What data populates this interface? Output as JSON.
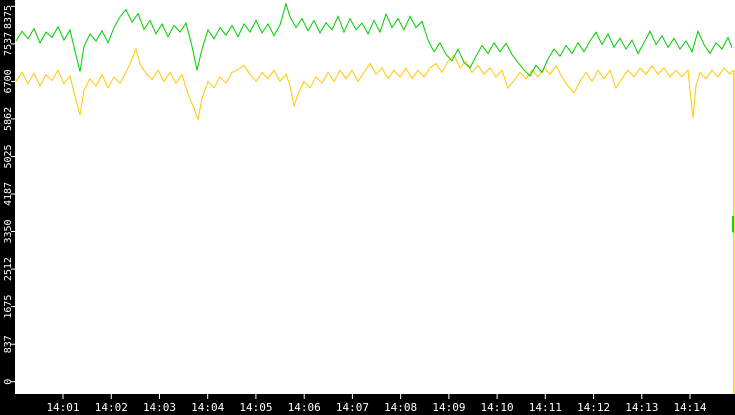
{
  "colors": {
    "background": "#ffffff",
    "axis_band": "#000000",
    "axis_text": "#ffffff",
    "tick_mark": "#ffffff",
    "series_green": "#00cc00",
    "series_yellow": "#ffc800"
  },
  "chart_data": {
    "type": "line",
    "title": "",
    "xlabel": "",
    "ylabel": "",
    "grid": false,
    "legend": "none",
    "x_axis": {
      "tick_labels": [
        "14:01",
        "14:02",
        "14:03",
        "14:04",
        "14:05",
        "14:06",
        "14:07",
        "14:08",
        "14:09",
        "14:10",
        "14:11",
        "14:12",
        "14:13",
        "14:14"
      ],
      "start_time": "14:00",
      "end_time": "14:14:55"
    },
    "y_axis": {
      "tick_labels": [
        "0",
        "837",
        "1675",
        "2512",
        "3350",
        "4187",
        "5025",
        "5862",
        "6700",
        "7537",
        "8375"
      ],
      "tick_values": [
        0,
        837,
        1675,
        2512,
        3350,
        4187,
        5025,
        5862,
        6700,
        7537,
        8375
      ],
      "ylim": [
        0,
        8375
      ]
    },
    "series": [
      {
        "name": "yellow-series",
        "color": "#ffc800",
        "points": [
          [
            16,
            6700
          ],
          [
            22,
            6900
          ],
          [
            28,
            6650
          ],
          [
            34,
            6880
          ],
          [
            40,
            6600
          ],
          [
            46,
            6850
          ],
          [
            52,
            6720
          ],
          [
            58,
            6950
          ],
          [
            64,
            6650
          ],
          [
            70,
            6820
          ],
          [
            76,
            6280
          ],
          [
            80,
            5950
          ],
          [
            84,
            6500
          ],
          [
            90,
            6760
          ],
          [
            96,
            6600
          ],
          [
            102,
            6850
          ],
          [
            108,
            6560
          ],
          [
            114,
            6800
          ],
          [
            120,
            6660
          ],
          [
            126,
            6900
          ],
          [
            132,
            7200
          ],
          [
            136,
            7430
          ],
          [
            140,
            7080
          ],
          [
            146,
            6880
          ],
          [
            152,
            6740
          ],
          [
            158,
            6950
          ],
          [
            164,
            6700
          ],
          [
            170,
            6900
          ],
          [
            176,
            6660
          ],
          [
            182,
            6850
          ],
          [
            188,
            6420
          ],
          [
            194,
            6100
          ],
          [
            198,
            5850
          ],
          [
            202,
            6320
          ],
          [
            208,
            6700
          ],
          [
            214,
            6560
          ],
          [
            220,
            6800
          ],
          [
            226,
            6660
          ],
          [
            232,
            6900
          ],
          [
            238,
            6960
          ],
          [
            244,
            7060
          ],
          [
            250,
            6860
          ],
          [
            256,
            6700
          ],
          [
            262,
            6900
          ],
          [
            268,
            6760
          ],
          [
            274,
            6950
          ],
          [
            280,
            6700
          ],
          [
            286,
            6860
          ],
          [
            290,
            6600
          ],
          [
            294,
            6150
          ],
          [
            298,
            6420
          ],
          [
            304,
            6700
          ],
          [
            310,
            6560
          ],
          [
            316,
            6800
          ],
          [
            322,
            6660
          ],
          [
            328,
            6900
          ],
          [
            334,
            6700
          ],
          [
            340,
            6950
          ],
          [
            346,
            6760
          ],
          [
            352,
            6950
          ],
          [
            358,
            6700
          ],
          [
            364,
            6900
          ],
          [
            370,
            7100
          ],
          [
            376,
            6860
          ],
          [
            382,
            7000
          ],
          [
            388,
            6760
          ],
          [
            394,
            6950
          ],
          [
            400,
            6800
          ],
          [
            406,
            7000
          ],
          [
            412,
            6760
          ],
          [
            418,
            6950
          ],
          [
            424,
            6800
          ],
          [
            430,
            7000
          ],
          [
            436,
            7100
          ],
          [
            442,
            6900
          ],
          [
            448,
            7150
          ],
          [
            454,
            7280
          ],
          [
            460,
            7000
          ],
          [
            466,
            7150
          ],
          [
            472,
            6900
          ],
          [
            478,
            7060
          ],
          [
            484,
            6860
          ],
          [
            490,
            7000
          ],
          [
            496,
            6800
          ],
          [
            502,
            6950
          ],
          [
            508,
            6550
          ],
          [
            514,
            6720
          ],
          [
            520,
            6900
          ],
          [
            526,
            6760
          ],
          [
            532,
            6950
          ],
          [
            538,
            6800
          ],
          [
            544,
            7000
          ],
          [
            550,
            6860
          ],
          [
            556,
            7050
          ],
          [
            562,
            6800
          ],
          [
            568,
            6600
          ],
          [
            574,
            6440
          ],
          [
            580,
            6700
          ],
          [
            586,
            6900
          ],
          [
            592,
            6700
          ],
          [
            598,
            6950
          ],
          [
            604,
            6760
          ],
          [
            610,
            6950
          ],
          [
            616,
            6550
          ],
          [
            622,
            6760
          ],
          [
            628,
            6950
          ],
          [
            634,
            6800
          ],
          [
            640,
            7000
          ],
          [
            646,
            6860
          ],
          [
            652,
            7050
          ],
          [
            658,
            6860
          ],
          [
            664,
            7000
          ],
          [
            670,
            6800
          ],
          [
            676,
            6950
          ],
          [
            682,
            6800
          ],
          [
            688,
            6950
          ],
          [
            691,
            6300
          ],
          [
            693,
            5880
          ],
          [
            696,
            6600
          ],
          [
            700,
            6900
          ],
          [
            706,
            6760
          ],
          [
            712,
            6950
          ],
          [
            718,
            6800
          ],
          [
            724,
            7000
          ],
          [
            730,
            6860
          ],
          [
            733,
            6950
          ]
        ],
        "final_drop": {
          "x": 734,
          "from_value": 6950,
          "extends_below_axis_to_bottom": true
        }
      },
      {
        "name": "green-series",
        "color": "#00cc00",
        "points": [
          [
            16,
            7600
          ],
          [
            22,
            7820
          ],
          [
            28,
            7650
          ],
          [
            34,
            7880
          ],
          [
            40,
            7560
          ],
          [
            46,
            7800
          ],
          [
            52,
            7680
          ],
          [
            58,
            7920
          ],
          [
            64,
            7620
          ],
          [
            70,
            7850
          ],
          [
            76,
            7280
          ],
          [
            80,
            6920
          ],
          [
            84,
            7480
          ],
          [
            90,
            7760
          ],
          [
            96,
            7600
          ],
          [
            102,
            7830
          ],
          [
            108,
            7560
          ],
          [
            114,
            7900
          ],
          [
            120,
            8140
          ],
          [
            126,
            8300
          ],
          [
            132,
            8020
          ],
          [
            138,
            8210
          ],
          [
            144,
            7860
          ],
          [
            150,
            8060
          ],
          [
            156,
            7760
          ],
          [
            162,
            7980
          ],
          [
            168,
            7700
          ],
          [
            174,
            7950
          ],
          [
            180,
            7800
          ],
          [
            186,
            8000
          ],
          [
            192,
            7480
          ],
          [
            197,
            6950
          ],
          [
            202,
            7420
          ],
          [
            208,
            7850
          ],
          [
            214,
            7650
          ],
          [
            220,
            7900
          ],
          [
            226,
            7730
          ],
          [
            232,
            7950
          ],
          [
            238,
            7700
          ],
          [
            244,
            7980
          ],
          [
            250,
            7800
          ],
          [
            256,
            8060
          ],
          [
            262,
            7780
          ],
          [
            268,
            7980
          ],
          [
            274,
            7720
          ],
          [
            280,
            7960
          ],
          [
            286,
            8430
          ],
          [
            290,
            8140
          ],
          [
            296,
            7900
          ],
          [
            302,
            8100
          ],
          [
            308,
            7830
          ],
          [
            314,
            8060
          ],
          [
            320,
            7780
          ],
          [
            326,
            8010
          ],
          [
            332,
            7850
          ],
          [
            338,
            8150
          ],
          [
            344,
            7800
          ],
          [
            350,
            8100
          ],
          [
            356,
            7850
          ],
          [
            362,
            8000
          ],
          [
            368,
            7760
          ],
          [
            374,
            8060
          ],
          [
            380,
            7800
          ],
          [
            386,
            8200
          ],
          [
            392,
            7900
          ],
          [
            398,
            8100
          ],
          [
            404,
            7850
          ],
          [
            410,
            8150
          ],
          [
            416,
            7900
          ],
          [
            422,
            8040
          ],
          [
            428,
            7620
          ],
          [
            434,
            7360
          ],
          [
            440,
            7560
          ],
          [
            446,
            7300
          ],
          [
            452,
            7160
          ],
          [
            458,
            7420
          ],
          [
            464,
            7120
          ],
          [
            470,
            7000
          ],
          [
            476,
            7260
          ],
          [
            482,
            7500
          ],
          [
            488,
            7320
          ],
          [
            494,
            7560
          ],
          [
            500,
            7360
          ],
          [
            506,
            7550
          ],
          [
            512,
            7300
          ],
          [
            518,
            7120
          ],
          [
            524,
            6960
          ],
          [
            530,
            6820
          ],
          [
            536,
            7060
          ],
          [
            542,
            6900
          ],
          [
            548,
            7200
          ],
          [
            554,
            7420
          ],
          [
            560,
            7260
          ],
          [
            566,
            7500
          ],
          [
            572,
            7320
          ],
          [
            578,
            7560
          ],
          [
            584,
            7360
          ],
          [
            590,
            7600
          ],
          [
            596,
            7800
          ],
          [
            602,
            7520
          ],
          [
            608,
            7760
          ],
          [
            614,
            7460
          ],
          [
            620,
            7660
          ],
          [
            626,
            7420
          ],
          [
            632,
            7620
          ],
          [
            638,
            7320
          ],
          [
            644,
            7560
          ],
          [
            650,
            7820
          ],
          [
            656,
            7520
          ],
          [
            662,
            7720
          ],
          [
            668,
            7460
          ],
          [
            674,
            7660
          ],
          [
            680,
            7420
          ],
          [
            686,
            7600
          ],
          [
            692,
            7360
          ],
          [
            698,
            7820
          ],
          [
            704,
            7520
          ],
          [
            710,
            7320
          ],
          [
            716,
            7560
          ],
          [
            722,
            7420
          ],
          [
            728,
            7680
          ],
          [
            732,
            7450
          ]
        ],
        "final_segment": {
          "x": 733,
          "from_value": 3700,
          "to_value": 3330
        }
      }
    ]
  }
}
